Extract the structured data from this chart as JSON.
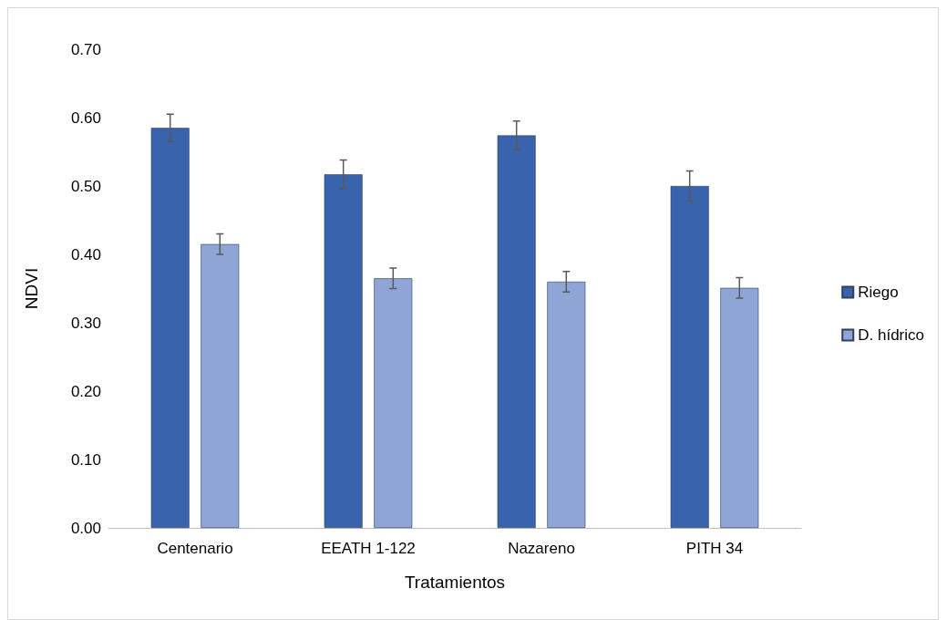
{
  "chart_data": {
    "type": "bar",
    "xlabel": "Tratamientos",
    "ylabel": "NDVI",
    "categories": [
      "Centenario",
      "EEATH 1-122",
      "Nazareno",
      "PITH 34"
    ],
    "series": [
      {
        "name": "Riego",
        "color": "#3a63ad",
        "values": [
          0.585,
          0.517,
          0.574,
          0.5
        ],
        "errors": [
          0.02,
          0.021,
          0.021,
          0.022
        ]
      },
      {
        "name": "D. hídrico",
        "color": "#8fa5d6",
        "values": [
          0.415,
          0.365,
          0.36,
          0.351
        ],
        "errors": [
          0.015,
          0.015,
          0.015,
          0.015
        ]
      }
    ],
    "ylim": [
      0,
      0.7
    ],
    "yticks": [
      {
        "value": 0,
        "label": "0.00"
      },
      {
        "value": 0.1,
        "label": "0.10"
      },
      {
        "value": 0.2,
        "label": "0.20"
      },
      {
        "value": 0.3,
        "label": "0.30"
      },
      {
        "value": 0.4,
        "label": "0.40"
      },
      {
        "value": 0.5,
        "label": "0.50"
      },
      {
        "value": 0.6,
        "label": "0.60"
      },
      {
        "value": 0.7,
        "label": "0.70"
      }
    ],
    "grid": false,
    "legend": "right"
  }
}
